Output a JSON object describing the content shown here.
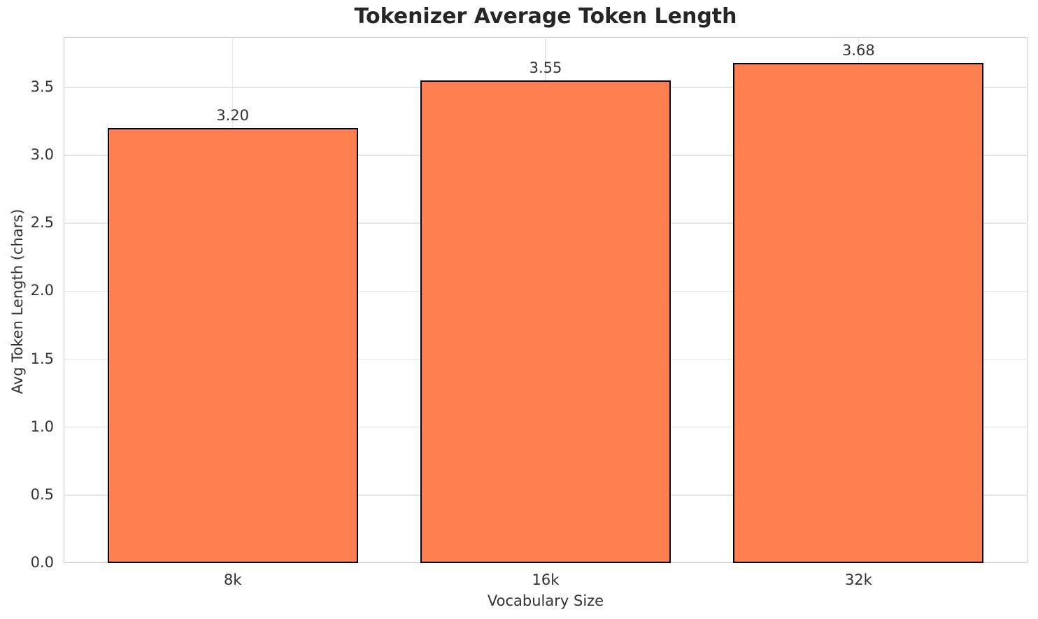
{
  "chart_data": {
    "type": "bar",
    "title": "Tokenizer Average Token Length",
    "xlabel": "Vocabulary Size",
    "ylabel": "Avg Token Length (chars)",
    "categories": [
      "8k",
      "16k",
      "32k"
    ],
    "values": [
      3.2,
      3.55,
      3.68
    ],
    "value_labels": [
      "3.20",
      "3.55",
      "3.68"
    ],
    "yticks": [
      0.0,
      0.5,
      1.0,
      1.5,
      2.0,
      2.5,
      3.0,
      3.5
    ],
    "ytick_labels": [
      "0.0",
      "0.5",
      "1.0",
      "1.5",
      "2.0",
      "2.5",
      "3.0",
      "3.5"
    ],
    "ylim": [
      0,
      3.87
    ],
    "xlim": [
      -0.54,
      2.54
    ],
    "bar_width_units": 0.8,
    "grid": true,
    "legend": "none",
    "colors": {
      "bar_fill": "#FF7F50",
      "bar_edge": "#000000",
      "gridline": "#e6e6e6",
      "spine": "#cccccc",
      "text": "#333333",
      "title": "#262626"
    }
  }
}
